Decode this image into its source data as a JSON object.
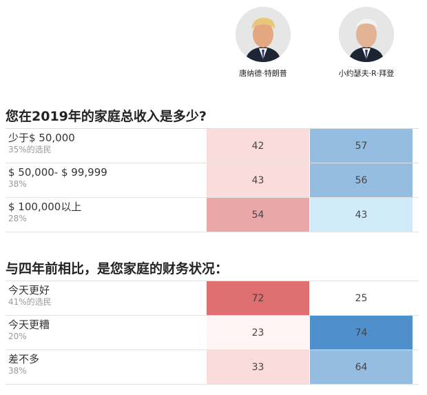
{
  "candidates": {
    "trump": {
      "name": "唐纳德·特朗普"
    },
    "biden": {
      "name": "小约瑟夫·R·拜登"
    }
  },
  "colors": {
    "trump_scale": [
      "#fff5f5",
      "#fbdcdc",
      "#e9a7a8",
      "#df6e70"
    ],
    "biden_scale": [
      "#ffffff",
      "#d2ebfb",
      "#94bde1",
      "#4f8fcb"
    ]
  },
  "chart_data": [
    {
      "type": "table",
      "title": "您在2019年的家庭总收入是多少?",
      "columns": [
        "唐纳德·特朗普",
        "小约瑟夫·R·拜登"
      ],
      "rows": [
        {
          "label": "少于$ 50,000",
          "sub": "35%的选民",
          "trump": 42,
          "biden": 57
        },
        {
          "label": "$ 50,000- $ 99,999",
          "sub": "38%",
          "trump": 43,
          "biden": 56
        },
        {
          "label": "$ 100,000以上",
          "sub": "28%",
          "trump": 54,
          "biden": 43
        }
      ]
    },
    {
      "type": "table",
      "title": "与四年前相比，是您家庭的财务状况：",
      "columns": [
        "唐纳德·特朗普",
        "小约瑟夫·R·拜登"
      ],
      "rows": [
        {
          "label": "今天更好",
          "sub": "41%的选民",
          "trump": 72,
          "biden": 25
        },
        {
          "label": "今天更糟",
          "sub": "20%",
          "trump": 23,
          "biden": 74
        },
        {
          "label": "差不多",
          "sub": "38%",
          "trump": 33,
          "biden": 64
        }
      ]
    }
  ]
}
